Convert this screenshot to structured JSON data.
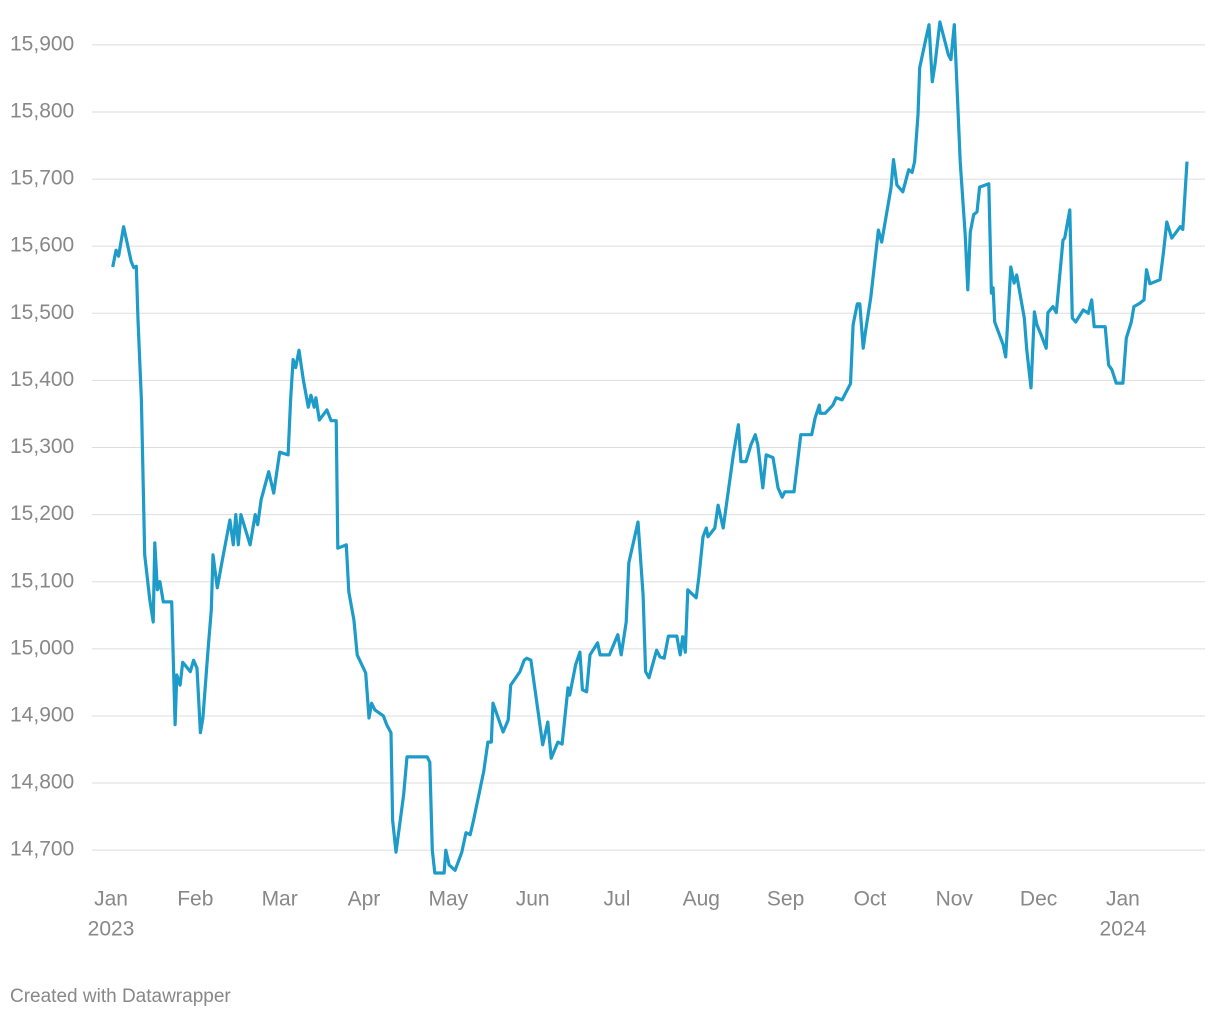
{
  "chart_data": {
    "type": "line",
    "grid": true,
    "color": "#1d9bc9",
    "x": [
      0.02,
      0.06,
      0.09,
      0.15,
      0.24,
      0.27,
      0.3,
      0.32,
      0.36,
      0.4,
      0.46,
      0.5,
      0.52,
      0.55,
      0.58,
      0.62,
      0.72,
      0.76,
      0.78,
      0.82,
      0.85,
      0.94,
      0.98,
      1.02,
      1.06,
      1.09,
      1.15,
      1.19,
      1.21,
      1.26,
      1.32,
      1.41,
      1.45,
      1.48,
      1.51,
      1.54,
      1.65,
      1.71,
      1.74,
      1.78,
      1.87,
      1.93,
      2.0,
      2.1,
      2.13,
      2.16,
      2.19,
      2.23,
      2.28,
      2.34,
      2.37,
      2.41,
      2.43,
      2.47,
      2.56,
      2.61,
      2.67,
      2.69,
      2.79,
      2.82,
      2.88,
      2.92,
      3.02,
      3.06,
      3.09,
      3.13,
      3.23,
      3.27,
      3.32,
      3.34,
      3.38,
      3.47,
      3.51,
      3.75,
      3.78,
      3.81,
      3.84,
      3.95,
      3.97,
      4.01,
      4.08,
      4.16,
      4.21,
      4.26,
      4.3,
      4.42,
      4.47,
      4.51,
      4.53,
      4.65,
      4.71,
      4.74,
      4.85,
      4.9,
      4.93,
      4.98,
      5.12,
      5.18,
      5.22,
      5.3,
      5.35,
      5.42,
      5.44,
      5.51,
      5.56,
      5.59,
      5.64,
      5.68,
      5.77,
      5.8,
      5.91,
      6.01,
      6.05,
      6.11,
      6.14,
      6.25,
      6.31,
      6.34,
      6.38,
      6.47,
      6.51,
      6.56,
      6.61,
      6.71,
      6.75,
      6.78,
      6.81,
      6.84,
      6.94,
      6.97,
      7.02,
      7.06,
      7.08,
      7.16,
      7.2,
      7.26,
      7.38,
      7.44,
      7.47,
      7.53,
      7.59,
      7.64,
      7.67,
      7.73,
      7.77,
      7.85,
      7.91,
      7.96,
      7.99,
      8.1,
      8.18,
      8.31,
      8.35,
      8.4,
      8.41,
      8.47,
      8.56,
      8.6,
      8.67,
      8.77,
      8.8,
      8.85,
      8.88,
      8.92,
      8.95,
      9.01,
      9.1,
      9.14,
      9.25,
      9.28,
      9.32,
      9.39,
      9.46,
      9.5,
      9.53,
      9.57,
      9.59,
      9.66,
      9.7,
      9.74,
      9.77,
      9.83,
      9.93,
      9.96,
      10.0,
      10.03,
      10.07,
      10.13,
      10.16,
      10.19,
      10.23,
      10.27,
      10.3,
      10.41,
      10.44,
      10.46,
      10.48,
      10.58,
      10.61,
      10.67,
      10.71,
      10.74,
      10.83,
      10.86,
      10.91,
      10.95,
      10.98,
      11.03,
      11.09,
      11.11,
      11.17,
      11.21,
      11.29,
      11.31,
      11.37,
      11.4,
      11.44,
      11.53,
      11.59,
      11.63,
      11.66,
      11.79,
      11.83,
      11.87,
      11.92,
      12.0,
      12.04,
      12.1,
      12.13,
      12.2,
      12.25,
      12.28,
      12.32,
      12.44,
      12.48,
      12.52,
      12.58,
      12.68,
      12.71,
      12.76
    ],
    "values": [
      15569,
      15594,
      15585,
      15629,
      15577,
      15568,
      15570,
      15490,
      15371,
      15140,
      15073,
      15040,
      15158,
      15088,
      15100,
      15070,
      15070,
      14887,
      14961,
      14946,
      14980,
      14966,
      14983,
      14971,
      14875,
      14897,
      14998,
      15058,
      15140,
      15091,
      15132,
      15192,
      15155,
      15200,
      15155,
      15200,
      15155,
      15200,
      15185,
      15222,
      15264,
      15232,
      15293,
      15289,
      15371,
      15431,
      15419,
      15445,
      15401,
      15360,
      15378,
      15360,
      15374,
      15341,
      15356,
      15340,
      15340,
      15150,
      15155,
      15085,
      15043,
      14991,
      14964,
      14897,
      14919,
      14909,
      14900,
      14887,
      14875,
      14745,
      14697,
      14782,
      14839,
      14839,
      14831,
      14700,
      14666,
      14666,
      14700,
      14678,
      14670,
      14697,
      14726,
      14723,
      14745,
      14817,
      14861,
      14861,
      14919,
      14876,
      14894,
      14946,
      14966,
      14983,
      14986,
      14983,
      14857,
      14891,
      14837,
      14861,
      14858,
      14942,
      14931,
      14976,
      14995,
      14939,
      14936,
      14991,
      15009,
      14991,
      14991,
      15021,
      14991,
      15040,
      15128,
      15189,
      15080,
      14966,
      14957,
      14998,
      14988,
      14986,
      15019,
      15019,
      14991,
      15018,
      14995,
      15088,
      15076,
      15106,
      15167,
      15180,
      15167,
      15180,
      15214,
      15180,
      15289,
      15334,
      15279,
      15279,
      15304,
      15319,
      15304,
      15240,
      15289,
      15285,
      15240,
      15226,
      15234,
      15234,
      15319,
      15319,
      15344,
      15363,
      15351,
      15351,
      15363,
      15374,
      15371,
      15395,
      15483,
      15514,
      15514,
      15448,
      15475,
      15524,
      15624,
      15606,
      15687,
      15729,
      15691,
      15681,
      15714,
      15710,
      15726,
      15796,
      15866,
      15907,
      15930,
      15845,
      15870,
      15934,
      15885,
      15878,
      15930,
      15845,
      15726,
      15617,
      15535,
      15621,
      15647,
      15651,
      15688,
      15693,
      15530,
      15538,
      15487,
      15453,
      15435,
      15569,
      15545,
      15557,
      15493,
      15445,
      15389,
      15502,
      15483,
      15468,
      15448,
      15501,
      15510,
      15501,
      15609,
      15612,
      15654,
      15493,
      15487,
      15505,
      15500,
      15520,
      15480,
      15480,
      15423,
      15416,
      15396,
      15396,
      15463,
      15487,
      15510,
      15515,
      15520,
      15565,
      15544,
      15550,
      15590,
      15636,
      15612,
      15629,
      15625,
      15726
    ],
    "xlim": [
      0,
      12.76
    ],
    "xticks": [
      {
        "value": 0,
        "label": "Jan",
        "sublabel": "2023"
      },
      {
        "value": 1,
        "label": "Feb"
      },
      {
        "value": 2,
        "label": "Mar"
      },
      {
        "value": 3,
        "label": "Apr"
      },
      {
        "value": 4,
        "label": "May"
      },
      {
        "value": 5,
        "label": "Jun"
      },
      {
        "value": 6,
        "label": "Jul"
      },
      {
        "value": 7,
        "label": "Aug"
      },
      {
        "value": 8,
        "label": "Sep"
      },
      {
        "value": 9,
        "label": "Oct"
      },
      {
        "value": 10,
        "label": "Nov"
      },
      {
        "value": 11,
        "label": "Dec"
      },
      {
        "value": 12,
        "label": "Jan",
        "sublabel": "2024"
      }
    ],
    "ylim": [
      14660,
      15940
    ],
    "yticks": [
      {
        "value": 14700,
        "label": "14,700"
      },
      {
        "value": 14800,
        "label": "14,800"
      },
      {
        "value": 14900,
        "label": "14,900"
      },
      {
        "value": 15000,
        "label": "15,000"
      },
      {
        "value": 15100,
        "label": "15,100"
      },
      {
        "value": 15200,
        "label": "15,200"
      },
      {
        "value": 15300,
        "label": "15,300"
      },
      {
        "value": 15400,
        "label": "15,400"
      },
      {
        "value": 15500,
        "label": "15,500"
      },
      {
        "value": 15600,
        "label": "15,600"
      },
      {
        "value": 15700,
        "label": "15,700"
      },
      {
        "value": 15800,
        "label": "15,800"
      },
      {
        "value": 15900,
        "label": "15,900"
      }
    ],
    "credit": "Created with Datawrapper"
  }
}
